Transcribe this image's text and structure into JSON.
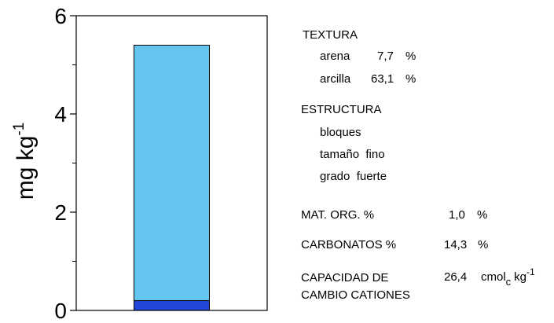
{
  "chart_data": {
    "type": "stacked_bar",
    "ylabel": "mg kg",
    "ylabel_sup": "-1",
    "categories": [
      null
    ],
    "series": [
      {
        "color": "#2346d8",
        "values": [
          0.2
        ]
      },
      {
        "color": "#63c5f0",
        "values": [
          5.2
        ]
      }
    ],
    "ylim": [
      0,
      6
    ],
    "yticks": [
      0,
      2,
      4,
      6
    ],
    "y_minor_ticks": [
      1,
      3,
      5
    ],
    "grid": false
  },
  "properties": {
    "textura": {
      "heading": "TEXTURA",
      "items": [
        {
          "label": "arena",
          "value": "7,7",
          "unit": "%"
        },
        {
          "label": "arcilla",
          "value": "63,1",
          "unit": "%"
        }
      ]
    },
    "estructura": {
      "heading": "ESTRUCTURA",
      "items": [
        "bloques",
        "tamaño  fino",
        "grado  fuerte"
      ]
    },
    "mat_org": {
      "label": "MAT. ORG. %",
      "value": "1,0",
      "unit": "%"
    },
    "carbonatos": {
      "label": "CARBONATOS %",
      "value": "14,3",
      "unit": "%"
    },
    "cec": {
      "label_lines": [
        "CAPACIDAD DE",
        "CAMBIO CATIONES"
      ],
      "value": "26,4",
      "unit": "cmol",
      "unit_sub": "c",
      "unit_tail": "kg",
      "unit_sup": "-1"
    }
  }
}
